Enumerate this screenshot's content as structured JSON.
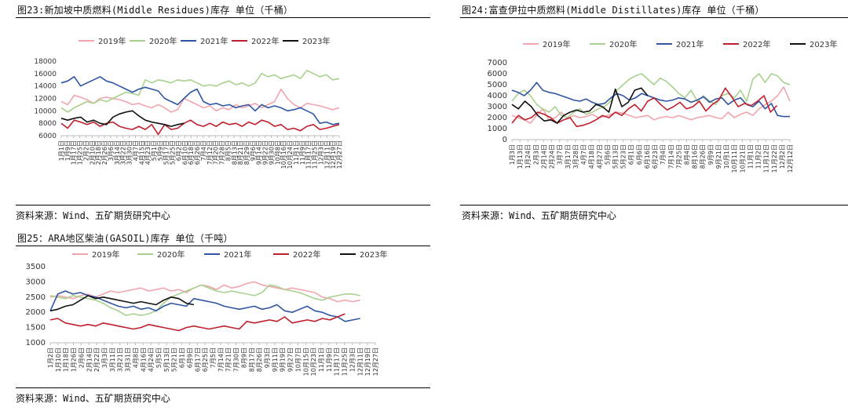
{
  "charts": [
    {
      "title": "图23:新加坡中质燃料(Middle Residues)库存 单位（千桶）",
      "source": "资料来源：Wind、五矿期货研究中心"
    },
    {
      "title": "图24:富查伊拉中质燃料(Middle Distillates)库存 单位（千桶）",
      "source": "资料来源：Wind、五矿期货研究中心"
    },
    {
      "title": "图25：ARA地区柴油(GASOIL)库存 单位（千吨）",
      "source": "资料来源：Wind、五矿期货研究中心"
    }
  ],
  "chart_data": [
    {
      "type": "line",
      "ylim": [
        6000,
        18000
      ],
      "yticks": [
        "18000",
        "16000",
        "14000",
        "12000",
        "10000",
        "8000",
        "6000"
      ],
      "xticks": [
        "1月1日",
        "1月9日",
        "1月17日",
        "1月25日",
        "2月2日",
        "2月10日",
        "2月18日",
        "2月26日",
        "3月6日",
        "3月14日",
        "3月22日",
        "3月30日",
        "4月7日",
        "4月15日",
        "4月23日",
        "5月1日",
        "5月9日",
        "5月17日",
        "5月25日",
        "6月2日",
        "6月10日",
        "6月18日",
        "6月26日",
        "7月4日",
        "7月12日",
        "7月20日",
        "7月28日",
        "8月5日",
        "8月13日",
        "8月21日",
        "8月29日",
        "9月6日",
        "9月14日",
        "9月22日",
        "9月30日",
        "10月8日",
        "10月16日",
        "10月24日",
        "11月1日",
        "11月9日",
        "11月17日",
        "11月25日",
        "12月3日",
        "12月11日",
        "12月19日",
        "12月27日"
      ],
      "grid": false,
      "legend": "top",
      "series": [
        {
          "name": "2019年",
          "color": "#f2a5ad",
          "values": [
            11500,
            11000,
            12500,
            12200,
            11800,
            11200,
            12000,
            12200,
            12000,
            11800,
            11500,
            11000,
            11200,
            10800,
            10500,
            11000,
            10500,
            9800,
            10200,
            12000,
            11500,
            11000,
            10500,
            10800,
            10000,
            10500,
            10200,
            11000,
            10500,
            10800,
            11200,
            10500,
            11000,
            11500,
            13500,
            12000,
            11000,
            10500,
            11200,
            11000,
            10800,
            10500,
            10200,
            10500
          ]
        },
        {
          "name": "2020年",
          "color": "#a9d18e",
          "values": [
            10500,
            9800,
            10500,
            11000,
            11500,
            11200,
            11800,
            11500,
            12000,
            12500,
            13000,
            12800,
            12500,
            15000,
            14500,
            15000,
            14800,
            14500,
            15000,
            14800,
            15000,
            14500,
            14000,
            14200,
            14000,
            14500,
            14800,
            14200,
            14500,
            14000,
            14500,
            16000,
            15500,
            15800,
            15200,
            15500,
            15800,
            15200,
            16500,
            16000,
            15500,
            15800,
            15000,
            15200
          ]
        },
        {
          "name": "2021年",
          "color": "#2f55a4",
          "values": [
            14500,
            14800,
            15500,
            14000,
            14500,
            15000,
            15500,
            14800,
            14500,
            14000,
            13500,
            13000,
            13500,
            13800,
            13500,
            13200,
            12000,
            11500,
            11000,
            12000,
            13000,
            13500,
            11500,
            11000,
            11200,
            10800,
            11000,
            10500,
            10800,
            11000,
            10000,
            11000,
            10500,
            10800,
            10500,
            10000,
            10200,
            10500,
            10000,
            9500,
            8000,
            8200,
            7800,
            8000
          ]
        },
        {
          "name": "2022年",
          "color": "#c0202d",
          "values": [
            8000,
            7200,
            8500,
            8200,
            7800,
            8200,
            7500,
            8000,
            8200,
            7500,
            7200,
            7000,
            7500,
            7000,
            7800,
            6200,
            7800,
            7000,
            7200,
            8000,
            8500,
            7800,
            7500,
            8000,
            7500,
            8200,
            7800,
            8000,
            7500,
            8200,
            7800,
            8500,
            8200,
            7500,
            7800,
            7000,
            7200,
            6800,
            7500,
            7800,
            7000,
            7200,
            7500,
            7800
          ]
        },
        {
          "name": "2023年",
          "color": "#111111",
          "values": [
            8800,
            8500,
            8800,
            9000,
            8200,
            8500,
            8000,
            7800,
            9000,
            9500,
            9800,
            10000,
            9200,
            8500,
            8200,
            8000,
            7800,
            7500,
            7800,
            8000
          ]
        }
      ]
    },
    {
      "type": "line",
      "ylim": [
        0,
        7000
      ],
      "yticks": [
        "7000",
        "6000",
        "5000",
        "4000",
        "3000",
        "2000",
        "1000",
        "0"
      ],
      "xticks": [
        "1月3日",
        "1月13日",
        "1月24日",
        "2月3日",
        "2月14日",
        "2月24日",
        "3月7日",
        "3月17日",
        "3月28日",
        "4月7日",
        "4月18日",
        "4月27日",
        "5月6日",
        "5月13日",
        "5月23日",
        "6月1日",
        "6月6日",
        "6月16日",
        "6月23日",
        "7月4日",
        "7月14日",
        "7月25日",
        "8月4日",
        "8月16日",
        "8月26日",
        "9月9日",
        "9月21日",
        "10月1日",
        "10月11日",
        "10月21日",
        "11月1日",
        "11月2日",
        "11月12日",
        "11月22日",
        "12月2日",
        "12月12日"
      ],
      "grid": false,
      "legend": "top",
      "series": [
        {
          "name": "2019年",
          "color": "#f2a5ad",
          "values": [
            2200,
            2000,
            1800,
            1500,
            2200,
            2800,
            1800,
            2000,
            2500,
            1900,
            2200,
            2000,
            2100,
            2300,
            2000,
            2100,
            2300,
            2500,
            2400,
            2200,
            2000,
            2100,
            2200,
            1800,
            2000,
            2100,
            2000,
            2200,
            2000,
            1800,
            2000,
            2100,
            2200,
            2000,
            1900,
            2500,
            2000,
            2300,
            2500,
            2200,
            2800,
            3200,
            3500,
            4000,
            4800,
            3500
          ]
        },
        {
          "name": "2020年",
          "color": "#a9d18e",
          "values": [
            3500,
            4200,
            4500,
            4000,
            3200,
            2800,
            2500,
            3000,
            2200,
            2000,
            2500,
            2800,
            2300,
            2500,
            2800,
            3000,
            3500,
            4500,
            5000,
            5500,
            5800,
            6000,
            5500,
            5000,
            5600,
            5300,
            4800,
            4200,
            3800,
            4500,
            3500,
            4000,
            3500,
            3200,
            4000,
            4200,
            3800,
            4500,
            3500,
            5500,
            6000,
            5200,
            6000,
            5800,
            5200,
            5000
          ]
        },
        {
          "name": "2021年",
          "color": "#2f55a4",
          "values": [
            4500,
            4300,
            4000,
            4500,
            5200,
            4500,
            4300,
            4200,
            4000,
            3800,
            3600,
            3500,
            3700,
            3400,
            3200,
            3300,
            3800,
            4200,
            4000,
            3600,
            3800,
            4200,
            4000,
            3800,
            3600,
            3500,
            3600,
            3800,
            3700,
            3400,
            3600,
            3900,
            3400,
            3700,
            3800,
            3200,
            3600,
            3800,
            3200,
            3000,
            3500,
            2800,
            3300,
            2200,
            2100,
            2100
          ]
        },
        {
          "name": "2022年",
          "color": "#c0202d",
          "values": [
            1500,
            2200,
            1800,
            2000,
            2500,
            2300,
            2000,
            1500,
            1800,
            2000,
            1200,
            1300,
            1500,
            1800,
            2200,
            2000,
            2500,
            2200,
            2800,
            3200,
            2600,
            3500,
            3800,
            3200,
            2700,
            3000,
            3400,
            2800,
            3000,
            3500,
            2600,
            3200,
            3600,
            4700,
            3900,
            3000,
            3300,
            3100,
            3500,
            4000,
            2500,
            3100
          ]
        },
        {
          "name": "2023年",
          "color": "#111111",
          "values": [
            3200,
            2800,
            3500,
            3000,
            2200,
            1700,
            1800,
            1500,
            2200,
            2500,
            2700,
            2500,
            2600,
            3200,
            3000,
            2500,
            4600,
            3000,
            3400,
            4500,
            4700,
            4000
          ]
        }
      ]
    },
    {
      "type": "line",
      "ylim": [
        1000,
        3500
      ],
      "yticks": [
        "3500",
        "3000",
        "2500",
        "2000",
        "1500",
        "1000"
      ],
      "xticks": [
        "1月2日",
        "1月10日",
        "1月18日",
        "1月26日",
        "2月6日",
        "2月14日",
        "2月22日",
        "3月3日",
        "3月11日",
        "3月21日",
        "3月31日",
        "4月8日",
        "4月16日",
        "4月24日",
        "5月5日",
        "5月13日",
        "5月21日",
        "6月1日",
        "6月9日",
        "6月17日",
        "6月25日",
        "7月5日",
        "7月14日",
        "7月21日",
        "7月30日",
        "8月9日",
        "8月17日",
        "8月26日",
        "9月3日",
        "9月11日",
        "9月19日",
        "9月27日",
        "10月7日",
        "10月15日",
        "10月23日",
        "11月1日",
        "11月9日",
        "11月17日",
        "11月25日",
        "12月3日",
        "12月11日",
        "12月19日",
        "12月27日"
      ],
      "grid": false,
      "legend": "top",
      "series": [
        {
          "name": "2019年",
          "color": "#f2a5ad",
          "values": [
            2500,
            2550,
            2500,
            2450,
            2550,
            2600,
            2500,
            2600,
            2700,
            2650,
            2700,
            2750,
            2800,
            2700,
            2750,
            2800,
            2700,
            2750,
            2650,
            2800,
            2900,
            2850,
            2750,
            2900,
            2800,
            2850,
            2950,
            3000,
            2900,
            2850,
            2800,
            2750,
            2800,
            2750,
            2700,
            2650,
            2500,
            2450,
            2350,
            2400,
            2350,
            2400
          ]
        },
        {
          "name": "2020年",
          "color": "#a9d18e",
          "values": [
            2550,
            2500,
            2450,
            2550,
            2500,
            2450,
            2400,
            2300,
            2150,
            2050,
            1900,
            1950,
            1900,
            1950,
            2050,
            2300,
            2500,
            2600,
            2700,
            2800,
            2900,
            2800,
            2700,
            2650,
            2700,
            2650,
            2600,
            2550,
            2650,
            2900,
            2850,
            2750,
            2700,
            2650,
            2550,
            2450,
            2400,
            2500,
            2550,
            2600,
            2600,
            2550
          ]
        },
        {
          "name": "2021年",
          "color": "#2f55a4",
          "values": [
            2050,
            2600,
            2700,
            2600,
            2650,
            2550,
            2500,
            2400,
            2300,
            2200,
            2150,
            2200,
            2100,
            2150,
            2050,
            2200,
            2300,
            2250,
            2200,
            2450,
            2400,
            2350,
            2300,
            2200,
            2150,
            2100,
            2150,
            2200,
            2100,
            2150,
            2250,
            2050,
            2000,
            2100,
            2200,
            2050,
            2000,
            1900,
            1850,
            1700,
            1750,
            1800
          ]
        },
        {
          "name": "2022年",
          "color": "#c0202d",
          "values": [
            1750,
            1800,
            1650,
            1600,
            1550,
            1600,
            1550,
            1650,
            1600,
            1550,
            1500,
            1450,
            1500,
            1600,
            1550,
            1500,
            1450,
            1400,
            1500,
            1550,
            1500,
            1450,
            1500,
            1550,
            1500,
            1450,
            1700,
            1650,
            1700,
            1750,
            1700,
            1850,
            1650,
            1700,
            1750,
            1700,
            1800,
            1750,
            1850,
            1950
          ]
        },
        {
          "name": "2023年",
          "color": "#111111",
          "values": [
            2050,
            2100,
            2200,
            2250,
            2400,
            2550,
            2450,
            2500,
            2450,
            2400,
            2350,
            2300,
            2350,
            2300,
            2250,
            2400,
            2500,
            2450,
            2300,
            2250
          ]
        }
      ]
    }
  ]
}
